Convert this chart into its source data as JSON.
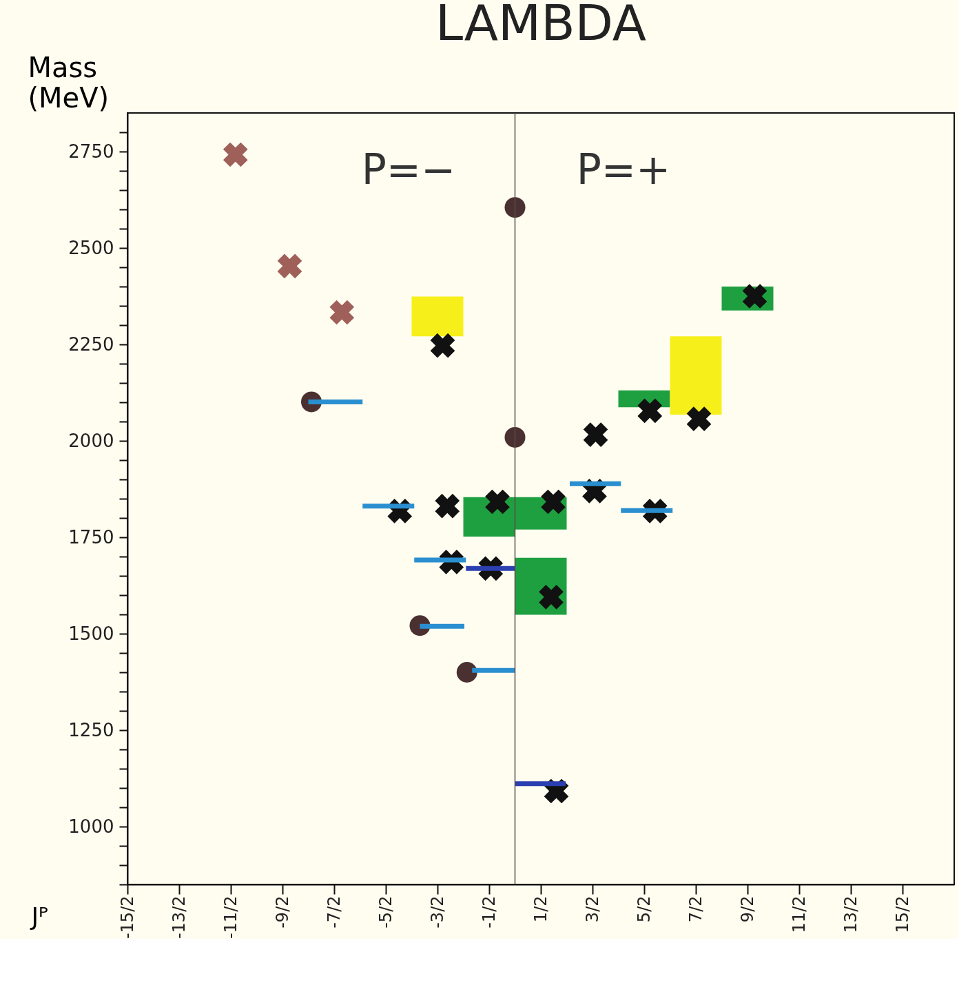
{
  "chart_data": {
    "type": "scatter",
    "title": "LAMBDA",
    "ylabel": "Mass (MeV)",
    "xlabel": "Jᴾ",
    "xlim": [
      -7.5,
      8.5
    ],
    "xticks": [
      {
        "value": -7.5,
        "label": "-15/2"
      },
      {
        "value": -6.5,
        "label": "-13/2"
      },
      {
        "value": -5.5,
        "label": "-11/2"
      },
      {
        "value": -4.5,
        "label": "-9/2"
      },
      {
        "value": -3.5,
        "label": "-7/2"
      },
      {
        "value": -2.5,
        "label": "-5/2"
      },
      {
        "value": -1.5,
        "label": "-3/2"
      },
      {
        "value": -0.5,
        "label": "-1/2"
      },
      {
        "value": 0.5,
        "label": "1/2"
      },
      {
        "value": 1.5,
        "label": "3/2"
      },
      {
        "value": 2.5,
        "label": "5/2"
      },
      {
        "value": 3.5,
        "label": "7/2"
      },
      {
        "value": 4.5,
        "label": "9/2"
      },
      {
        "value": 5.5,
        "label": "11/2"
      },
      {
        "value": 6.5,
        "label": "13/2"
      },
      {
        "value": 7.5,
        "label": "15/2"
      }
    ],
    "ylim": [
      850,
      2850
    ],
    "yticks": [
      {
        "value": 850,
        "label": null
      },
      {
        "value": 900,
        "label": null
      },
      {
        "value": 950,
        "label": null
      },
      1000,
      {
        "value": 1050,
        "label": null
      },
      {
        "value": 1100,
        "label": null
      },
      {
        "value": 1150,
        "label": null
      },
      {
        "value": 1200,
        "label": null
      },
      1250,
      {
        "value": 1300,
        "label": null
      },
      {
        "value": 1350,
        "label": null
      },
      {
        "value": 1400,
        "label": null
      },
      {
        "value": 1450,
        "label": null
      },
      1500,
      {
        "value": 1550,
        "label": null
      },
      {
        "value": 1600,
        "label": null
      },
      {
        "value": 1650,
        "label": null
      },
      {
        "value": 1700,
        "label": null
      },
      1750,
      {
        "value": 1800,
        "label": null
      },
      {
        "value": 1850,
        "label": null
      },
      {
        "value": 1900,
        "label": null
      },
      {
        "value": 1950,
        "label": null
      },
      2000,
      {
        "value": 2050,
        "label": null
      },
      {
        "value": 2100,
        "label": null
      },
      {
        "value": 2150,
        "label": null
      },
      {
        "value": 2200,
        "label": null
      },
      2250,
      {
        "value": 2300,
        "label": null
      },
      {
        "value": 2350,
        "label": null
      },
      {
        "value": 2400,
        "label": null
      },
      {
        "value": 2450,
        "label": null
      },
      2500,
      {
        "value": 2550,
        "label": null
      },
      {
        "value": 2600,
        "label": null
      },
      {
        "value": 2650,
        "label": null
      },
      {
        "value": 2700,
        "label": null
      },
      2750,
      {
        "value": 2800,
        "label": null
      }
    ],
    "grid": false,
    "ref_lines": [
      {
        "axis": "x",
        "value": 0,
        "color": "#5a4a4a"
      }
    ],
    "annotations": [
      "P=−",
      "P=+"
    ],
    "series": [
      {
        "type": "bar",
        "color": "#1fa040",
        "x": [
          -0.5,
          0.5,
          2.5,
          4.5
        ],
        "base": [
          1752,
          1770,
          2087,
          2338
        ],
        "values": [
          102,
          84,
          44,
          62
        ]
      },
      {
        "type": "bar",
        "color": "#1fa040",
        "x": [
          0.5
        ],
        "base": [
          1549
        ],
        "values": [
          148
        ]
      },
      {
        "type": "bar",
        "color": "#f7ef1a",
        "x": [
          -1.5,
          3.5
        ],
        "base": [
          2271,
          2068
        ],
        "values": [
          103,
          203
        ]
      },
      {
        "marker": "circle",
        "color": "#4a3030",
        "x": [
          -3.94,
          -1.84,
          -0.93,
          0.0,
          0.0
        ],
        "values": [
          2101,
          1521,
          1400,
          2605,
          2009
        ]
      },
      {
        "marker": "cross",
        "color": "#a0605a",
        "x": [
          -5.41,
          -4.36,
          -3.35
        ],
        "values": [
          2742,
          2453,
          2333
        ]
      },
      {
        "marker": "cross",
        "color": "#111111",
        "x": [
          -1.4,
          -2.23,
          -1.31,
          -0.34,
          -1.23,
          -0.47,
          0.74,
          0.7,
          0.8,
          1.54,
          1.56,
          2.61,
          2.71,
          3.56,
          4.64
        ],
        "values": [
          2247,
          1818,
          1831,
          1842,
          1686,
          1669,
          1842,
          1595,
          1092,
          1870,
          2016,
          2078,
          1818,
          2057,
          2375
        ]
      },
      {
        "type": "line",
        "color": "#2a8fd0",
        "x": [
          -4.0,
          -2.95
        ],
        "values": [
          2101,
          2101
        ]
      },
      {
        "type": "line",
        "color": "#2a8fd0",
        "x": [
          -2.95,
          -1.95
        ],
        "values": [
          1831,
          1831
        ]
      },
      {
        "type": "line",
        "color": "#2a8fd0",
        "x": [
          -1.95,
          -0.95
        ],
        "values": [
          1691,
          1691
        ]
      },
      {
        "type": "line",
        "color": "#2a8fd0",
        "x": [
          -1.84,
          -0.98
        ],
        "values": [
          1519,
          1519
        ]
      },
      {
        "type": "line",
        "color": "#2a8fd0",
        "x": [
          -0.83,
          0.0
        ],
        "values": [
          1405,
          1405
        ]
      },
      {
        "type": "line",
        "color": "#2a8fd0",
        "x": [
          1.06,
          2.05
        ],
        "values": [
          1889,
          1889
        ]
      },
      {
        "type": "line",
        "color": "#2a8fd0",
        "x": [
          2.05,
          3.05
        ],
        "values": [
          1819,
          1819
        ]
      },
      {
        "type": "line",
        "color": "#2b3fb0",
        "x": [
          -0.95,
          0.0
        ],
        "values": [
          1669,
          1669
        ]
      },
      {
        "type": "line",
        "color": "#2b3fb0",
        "x": [
          0.0,
          0.98
        ],
        "values": [
          1111,
          1111
        ]
      }
    ]
  }
}
